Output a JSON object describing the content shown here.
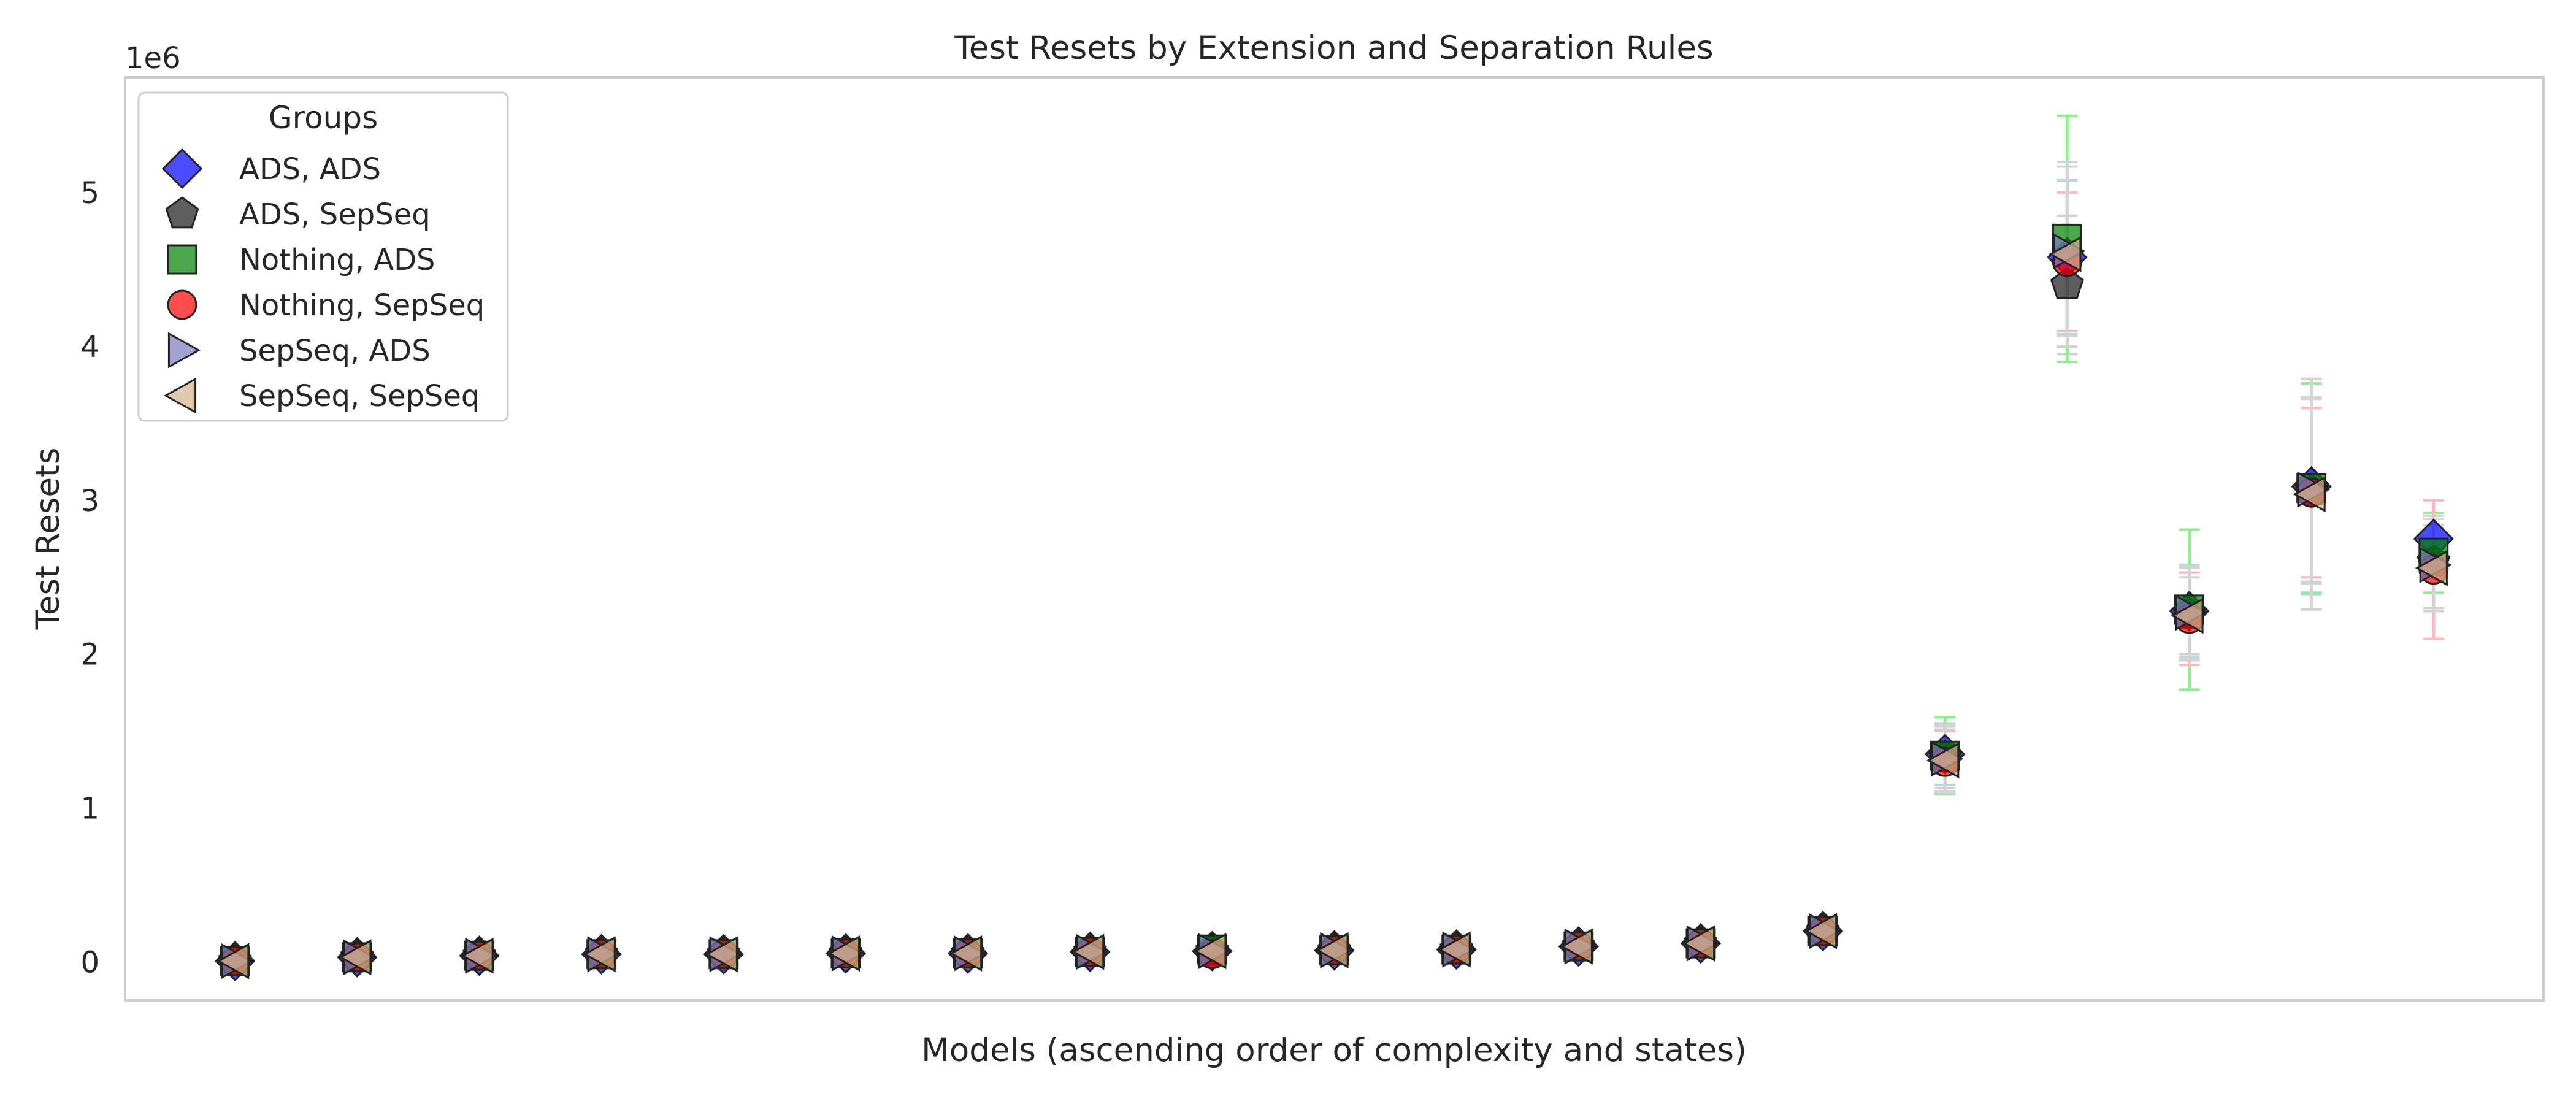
{
  "chart_data": {
    "type": "scatter",
    "title": "Test Resets by Extension and Separation Rules",
    "xlabel": "Models (ascending order of complexity and states)",
    "ylabel": "Test Resets",
    "y_offset_label": "1e6",
    "ylim": [
      -0.25,
      5.75
    ],
    "yticks": [
      0,
      1,
      2,
      3,
      4,
      5
    ],
    "grid": false,
    "legend": {
      "title": "Groups",
      "placement": "upper-left"
    },
    "x": [
      1,
      2,
      3,
      4,
      5,
      6,
      7,
      8,
      9,
      10,
      11,
      12,
      13,
      14,
      15,
      16,
      17,
      18,
      19
    ],
    "series": [
      {
        "name": "ADS, ADS",
        "marker": "diamond",
        "color": "#0000ff",
        "error_color": "#add8e6",
        "values": [
          0.005,
          0.03,
          0.04,
          0.05,
          0.05,
          0.055,
          0.055,
          0.065,
          0.07,
          0.075,
          0.08,
          0.1,
          0.12,
          0.2,
          1.35,
          4.58,
          2.28,
          3.09,
          2.75
        ],
        "errors": [
          0,
          0,
          0,
          0,
          0,
          0,
          0,
          0,
          0,
          0,
          0,
          0,
          0,
          0,
          0.2,
          0.5,
          0.3,
          0.7,
          0.25
        ]
      },
      {
        "name": "ADS, SepSeq",
        "marker": "pentagon",
        "color": "#1a1a1a",
        "error_color": "#d3d3d3",
        "values": [
          0.005,
          0.03,
          0.04,
          0.05,
          0.05,
          0.055,
          0.055,
          0.065,
          0.07,
          0.075,
          0.08,
          0.1,
          0.12,
          0.2,
          1.33,
          4.4,
          2.26,
          3.06,
          2.6
        ],
        "errors": [
          0,
          0,
          0,
          0,
          0,
          0,
          0,
          0,
          0,
          0,
          0,
          0,
          0,
          0,
          0.2,
          0.45,
          0.3,
          0.6,
          0.3
        ]
      },
      {
        "name": "Nothing, ADS",
        "marker": "square",
        "color": "#008000",
        "error_color": "#90ee90",
        "values": [
          0.005,
          0.03,
          0.04,
          0.05,
          0.05,
          0.055,
          0.055,
          0.065,
          0.08,
          0.075,
          0.08,
          0.1,
          0.12,
          0.2,
          1.34,
          4.7,
          2.29,
          3.08,
          2.66
        ],
        "errors": [
          0,
          0,
          0,
          0,
          0,
          0,
          0,
          0,
          0,
          0,
          0,
          0,
          0,
          0,
          0.25,
          0.8,
          0.52,
          0.68,
          0.26
        ]
      },
      {
        "name": "Nothing, SepSeq",
        "marker": "circle",
        "color": "#ff0000",
        "error_color": "#ffb6c1",
        "values": [
          0.005,
          0.03,
          0.04,
          0.05,
          0.05,
          0.055,
          0.055,
          0.065,
          0.05,
          0.075,
          0.08,
          0.1,
          0.12,
          0.2,
          1.3,
          4.55,
          2.23,
          3.05,
          2.55
        ],
        "errors": [
          0,
          0,
          0,
          0,
          0,
          0,
          0,
          0,
          0,
          0,
          0,
          0,
          0,
          0,
          0.2,
          0.45,
          0.3,
          0.55,
          0.45
        ]
      },
      {
        "name": "SepSeq, ADS",
        "marker": "triangle-right",
        "color": "#7b7bbf",
        "error_color": "#d3d3d3",
        "values": [
          0.005,
          0.03,
          0.04,
          0.05,
          0.05,
          0.055,
          0.055,
          0.065,
          0.07,
          0.075,
          0.08,
          0.1,
          0.12,
          0.2,
          1.32,
          4.62,
          2.27,
          3.07,
          2.58
        ],
        "errors": [
          0,
          0,
          0,
          0,
          0,
          0,
          0,
          0,
          0,
          0,
          0,
          0,
          0,
          0,
          0.22,
          0.55,
          0.3,
          0.6,
          0.3
        ]
      },
      {
        "name": "SepSeq, SepSeq",
        "marker": "triangle-left",
        "color": "#d2b48c",
        "error_color": "#d3d3d3",
        "values": [
          0.005,
          0.03,
          0.04,
          0.05,
          0.05,
          0.055,
          0.055,
          0.065,
          0.07,
          0.075,
          0.08,
          0.1,
          0.12,
          0.2,
          1.31,
          4.6,
          2.25,
          3.04,
          2.56
        ],
        "errors": [
          0,
          0,
          0,
          0,
          0,
          0,
          0,
          0,
          0,
          0,
          0,
          0,
          0,
          0,
          0.2,
          0.6,
          0.25,
          0.75,
          0.28
        ]
      }
    ]
  }
}
